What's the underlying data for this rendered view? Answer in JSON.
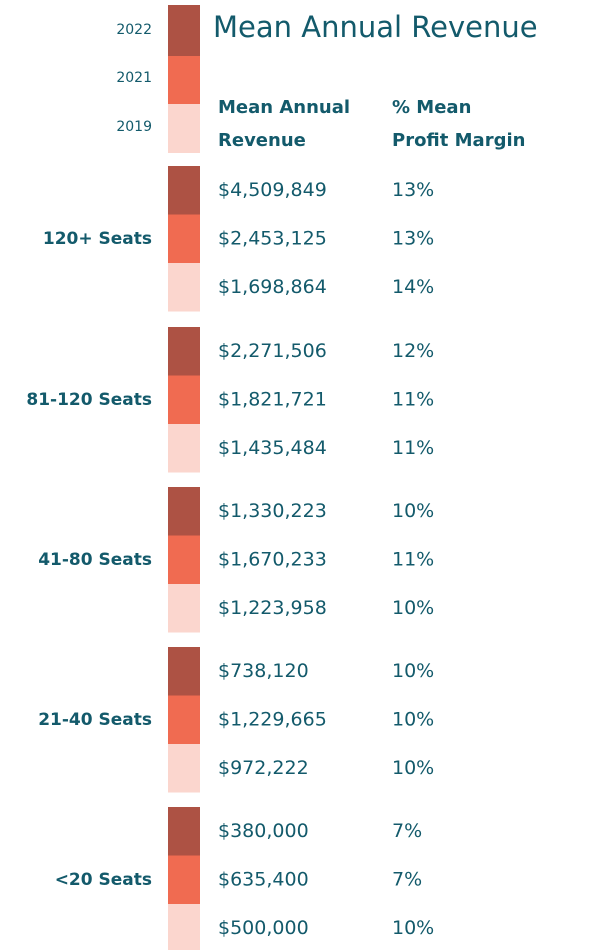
{
  "legend": [
    {
      "label": "2022",
      "color": "#ad5244"
    },
    {
      "label": "2021",
      "color": "#f06b51"
    },
    {
      "label": "2019",
      "color": "#fbd6ce"
    }
  ],
  "title": "Mean Annual Revenue",
  "headers": {
    "revenue": "Mean Annual Revenue",
    "margin": "% Mean Profit Margin"
  },
  "groups": [
    {
      "label": "120+ Seats",
      "rows": [
        {
          "revenue": "$4,509,849",
          "margin": "13%"
        },
        {
          "revenue": "$2,453,125",
          "margin": "13%"
        },
        {
          "revenue": "$1,698,864",
          "margin": "14%"
        }
      ]
    },
    {
      "label": "81-120 Seats",
      "rows": [
        {
          "revenue": "$2,271,506",
          "margin": "12%"
        },
        {
          "revenue": "$1,821,721",
          "margin": "11%"
        },
        {
          "revenue": "$1,435,484",
          "margin": "11%"
        }
      ]
    },
    {
      "label": "41-80 Seats",
      "rows": [
        {
          "revenue": "$1,330,223",
          "margin": "10%"
        },
        {
          "revenue": "$1,670,233",
          "margin": "11%"
        },
        {
          "revenue": "$1,223,958",
          "margin": "10%"
        }
      ]
    },
    {
      "label": "21-40 Seats",
      "rows": [
        {
          "revenue": "$738,120",
          "margin": "10%"
        },
        {
          "revenue": "$1,229,665",
          "margin": "10%"
        },
        {
          "revenue": "$972,222",
          "margin": "10%"
        }
      ]
    },
    {
      "label": "<20 Seats",
      "rows": [
        {
          "revenue": "$380,000",
          "margin": "7%"
        },
        {
          "revenue": "$635,400",
          "margin": "7%"
        },
        {
          "revenue": "$500,000",
          "margin": "10%"
        }
      ]
    }
  ]
}
